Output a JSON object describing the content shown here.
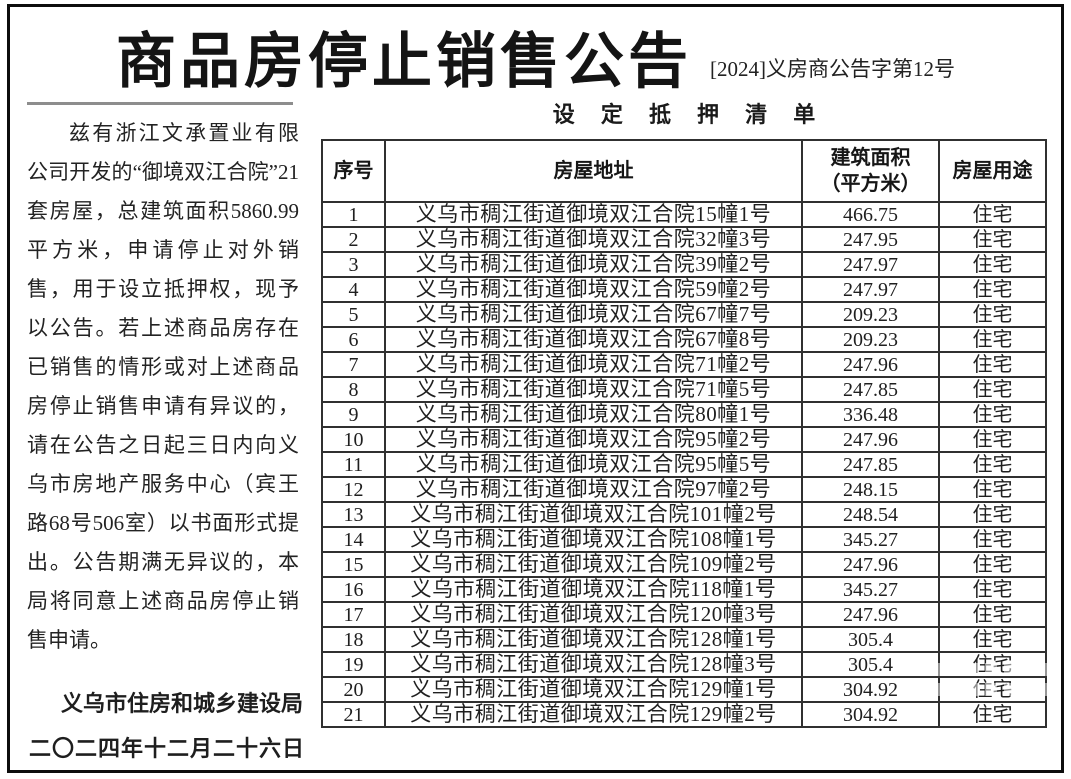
{
  "page": {
    "title": "商品房停止销售公告",
    "doc_number": "[2024]义房商公告字第12号",
    "list_title": "设 定 抵 押 清 单"
  },
  "announcement": {
    "body": "兹有浙江文承置业有限公司开发的“御境双江合院”21套房屋，总建筑面积5860.99平方米，申请停止对外销售，用于设立抵押权，现予以公告。若上述商品房存在已销售的情形或对上述商品房停止销售申请有异议的，请在公告之日起三日内向义乌市房地产服务中心（宾王路68号506室）以书面形式提出。公告期满无异议的，本局将同意上述商品房停止销售申请。",
    "issuer": "义乌市住房和城乡建设局",
    "date": "二〇二四年十二月二十六日"
  },
  "table": {
    "headers": [
      "序号",
      "房屋地址",
      "建筑面积\n（平方米）",
      "房屋用途"
    ],
    "rows": [
      {
        "no": "1",
        "address": "义乌市稠江街道御境双江合院15幢1号",
        "area": "466.75",
        "use": "住宅"
      },
      {
        "no": "2",
        "address": "义乌市稠江街道御境双江合院32幢3号",
        "area": "247.95",
        "use": "住宅"
      },
      {
        "no": "3",
        "address": "义乌市稠江街道御境双江合院39幢2号",
        "area": "247.97",
        "use": "住宅"
      },
      {
        "no": "4",
        "address": "义乌市稠江街道御境双江合院59幢2号",
        "area": "247.97",
        "use": "住宅"
      },
      {
        "no": "5",
        "address": "义乌市稠江街道御境双江合院67幢7号",
        "area": "209.23",
        "use": "住宅"
      },
      {
        "no": "6",
        "address": "义乌市稠江街道御境双江合院67幢8号",
        "area": "209.23",
        "use": "住宅"
      },
      {
        "no": "7",
        "address": "义乌市稠江街道御境双江合院71幢2号",
        "area": "247.96",
        "use": "住宅"
      },
      {
        "no": "8",
        "address": "义乌市稠江街道御境双江合院71幢5号",
        "area": "247.85",
        "use": "住宅"
      },
      {
        "no": "9",
        "address": "义乌市稠江街道御境双江合院80幢1号",
        "area": "336.48",
        "use": "住宅"
      },
      {
        "no": "10",
        "address": "义乌市稠江街道御境双江合院95幢2号",
        "area": "247.96",
        "use": "住宅"
      },
      {
        "no": "11",
        "address": "义乌市稠江街道御境双江合院95幢5号",
        "area": "247.85",
        "use": "住宅"
      },
      {
        "no": "12",
        "address": "义乌市稠江街道御境双江合院97幢2号",
        "area": "248.15",
        "use": "住宅"
      },
      {
        "no": "13",
        "address": "义乌市稠江街道御境双江合院101幢2号",
        "area": "248.54",
        "use": "住宅"
      },
      {
        "no": "14",
        "address": "义乌市稠江街道御境双江合院108幢1号",
        "area": "345.27",
        "use": "住宅"
      },
      {
        "no": "15",
        "address": "义乌市稠江街道御境双江合院109幢2号",
        "area": "247.96",
        "use": "住宅"
      },
      {
        "no": "16",
        "address": "义乌市稠江街道御境双江合院118幢1号",
        "area": "345.27",
        "use": "住宅"
      },
      {
        "no": "17",
        "address": "义乌市稠江街道御境双江合院120幢3号",
        "area": "247.96",
        "use": "住宅"
      },
      {
        "no": "18",
        "address": "义乌市稠江街道御境双江合院128幢1号",
        "area": "305.4",
        "use": "住宅"
      },
      {
        "no": "19",
        "address": "义乌市稠江街道御境双江合院128幢3号",
        "area": "305.4",
        "use": "住宅"
      },
      {
        "no": "20",
        "address": "义乌市稠江街道御境双江合院129幢1号",
        "area": "304.92",
        "use": "住宅"
      },
      {
        "no": "21",
        "address": "义乌市稠江街道御境双江合院129幢2号",
        "area": "304.92",
        "use": "住宅"
      }
    ]
  },
  "colors": {
    "page_border": "#0d0d0d",
    "table_border": "#303030",
    "divider_gray": "#8d8d8d",
    "text": "#1c1c1c",
    "background": "#ffffff"
  }
}
